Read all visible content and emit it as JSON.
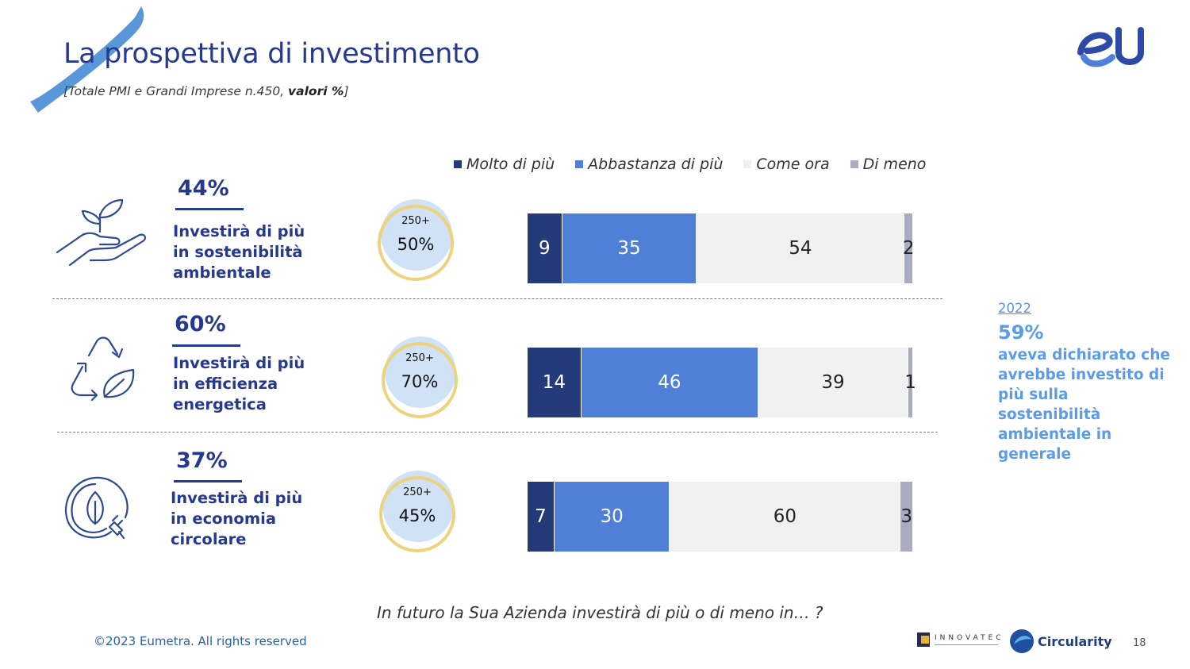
{
  "header": {
    "title": "La prospettiva di investimento",
    "subtitle_prefix": "[Totale PMI e Grandi Imprese n.450, ",
    "subtitle_bold": "valori %",
    "subtitle_suffix": "]"
  },
  "logos": {
    "top_right": "eU",
    "innovatec": "INNOVATEC",
    "circularity": "Circularity"
  },
  "legend": [
    {
      "label": "Molto di più",
      "color": "#253a7a"
    },
    {
      "label": "Abbastanza di più",
      "color": "#4f7fd6"
    },
    {
      "label": "Come ora",
      "color": "#f1f1f1"
    },
    {
      "label": "Di meno",
      "color": "#a9abc0"
    }
  ],
  "rows": [
    {
      "pct": "44%",
      "label1": "Investirà di più",
      "label2": "in sostenibilità",
      "label3": "ambientale",
      "icon": "hand-plant-icon",
      "circle_top": "250+",
      "circle_value": "50%"
    },
    {
      "pct": "60%",
      "label1": "Investirà di più",
      "label2": "in efficienza",
      "label3": "energetica",
      "icon": "recycle-leaf-icon",
      "circle_top": "250+",
      "circle_value": "70%"
    },
    {
      "pct": "37%",
      "label1": "Investirà di più",
      "label2": "in economia",
      "label3": "circolare",
      "icon": "eco-plug-icon",
      "circle_top": "250+",
      "circle_value": "45%"
    }
  ],
  "chart_data": {
    "type": "bar",
    "orientation": "horizontal-stacked",
    "categories": [
      "in sostenibilità ambientale",
      "in efficienza energetica",
      "in economia circolare"
    ],
    "series": [
      {
        "name": "Molto di più",
        "values": [
          9,
          14,
          7
        ]
      },
      {
        "name": "Abbastanza di più",
        "values": [
          35,
          46,
          30
        ]
      },
      {
        "name": "Come ora",
        "values": [
          54,
          39,
          60
        ]
      },
      {
        "name": "Di meno",
        "values": [
          2,
          1,
          3
        ]
      }
    ],
    "legend_position": "top",
    "grid": false
  },
  "sidebar": {
    "year": "2022",
    "pct": "59%",
    "text": "aveva dichiarato che avrebbe investito di più sulla sostenibilità ambientale in generale"
  },
  "question": "In futuro la Sua Azienda investirà di più o di meno in… ?",
  "footer": "©2023 Eumetra. All rights reserved",
  "page_number": "18"
}
